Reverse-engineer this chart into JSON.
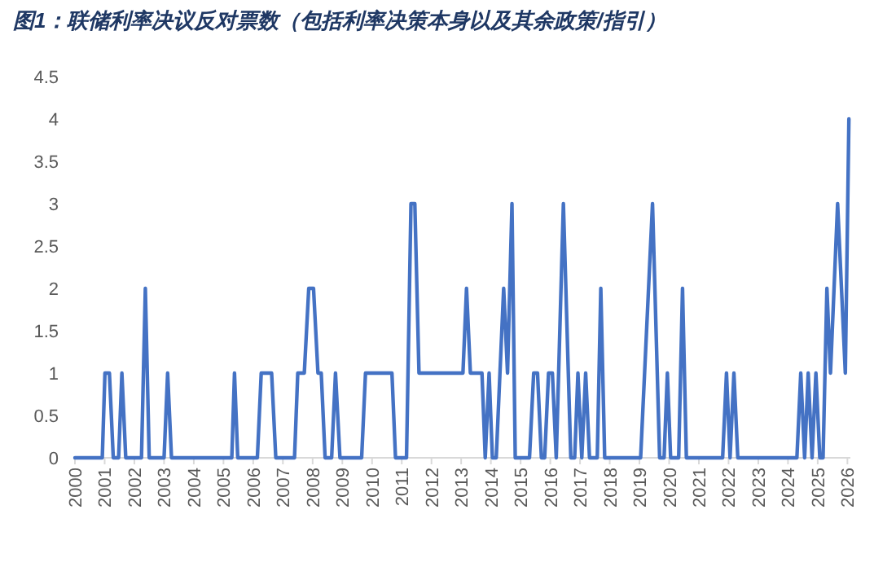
{
  "chart_data": {
    "type": "line",
    "title": "图1：联储利率决议反对票数（包括利率决策本身以及其余政策/指引）",
    "x": [
      2000.0,
      2000.92,
      2001.01,
      2001.16,
      2001.29,
      2001.47,
      2001.58,
      2001.71,
      2002.24,
      2002.37,
      2002.5,
      2003.0,
      2003.12,
      2003.25,
      2005.28,
      2005.37,
      2005.48,
      2006.14,
      2006.27,
      2006.62,
      2006.76,
      2007.39,
      2007.5,
      2007.72,
      2007.87,
      2008.03,
      2008.18,
      2008.29,
      2008.42,
      2008.64,
      2008.77,
      2008.92,
      2009.65,
      2009.78,
      2010.67,
      2010.79,
      2011.16,
      2011.31,
      2011.44,
      2011.58,
      2013.06,
      2013.18,
      2013.31,
      2013.7,
      2013.81,
      2013.94,
      2014.05,
      2014.18,
      2014.43,
      2014.56,
      2014.71,
      2014.82,
      2015.3,
      2015.44,
      2015.57,
      2015.7,
      2015.81,
      2015.94,
      2016.07,
      2016.2,
      2016.44,
      2016.69,
      2016.82,
      2016.93,
      2017.06,
      2017.19,
      2017.32,
      2017.58,
      2017.7,
      2017.83,
      2019.04,
      2019.44,
      2019.68,
      2019.83,
      2019.94,
      2020.05,
      2020.32,
      2020.45,
      2020.58,
      2021.8,
      2021.93,
      2022.05,
      2022.18,
      2022.31,
      2024.3,
      2024.43,
      2024.56,
      2024.68,
      2024.81,
      2024.94,
      2025.07,
      2025.18,
      2025.31,
      2025.43,
      2025.67,
      2025.93,
      2026.05
    ],
    "values": [
      0,
      0,
      1,
      1,
      0,
      0,
      1,
      0,
      0,
      2,
      0,
      0,
      1,
      0,
      0,
      1,
      0,
      0,
      1,
      1,
      0,
      0,
      1,
      1,
      2,
      2,
      1,
      1,
      0,
      0,
      1,
      0,
      0,
      1,
      1,
      0,
      0,
      3,
      3,
      1,
      1,
      2,
      1,
      1,
      0,
      1,
      0,
      0,
      2,
      1,
      3,
      0,
      0,
      1,
      1,
      0,
      0,
      1,
      1,
      0,
      3,
      0,
      0,
      1,
      0,
      1,
      0,
      0,
      2,
      0,
      0,
      3,
      0,
      0,
      1,
      0,
      0,
      2,
      0,
      0,
      1,
      0,
      1,
      0,
      0,
      1,
      0,
      1,
      0,
      1,
      0,
      0,
      2,
      1,
      3,
      1,
      4
    ],
    "color": "#4472c4",
    "line_style": "solid",
    "marker": "none",
    "grid": false,
    "xlim": [
      2000,
      2026.1
    ],
    "xticks": [
      2000,
      2001,
      2002,
      2003,
      2004,
      2005,
      2006,
      2007,
      2008,
      2009,
      2010,
      2011,
      2012,
      2013,
      2014,
      2015,
      2016,
      2017,
      2018,
      2019,
      2020,
      2021,
      2022,
      2023,
      2024,
      2025,
      2026
    ],
    "ylim": [
      0,
      4.5
    ],
    "yticks": [
      0,
      0.5,
      1,
      1.5,
      2,
      2.5,
      3,
      3.5,
      4,
      4.5
    ]
  }
}
